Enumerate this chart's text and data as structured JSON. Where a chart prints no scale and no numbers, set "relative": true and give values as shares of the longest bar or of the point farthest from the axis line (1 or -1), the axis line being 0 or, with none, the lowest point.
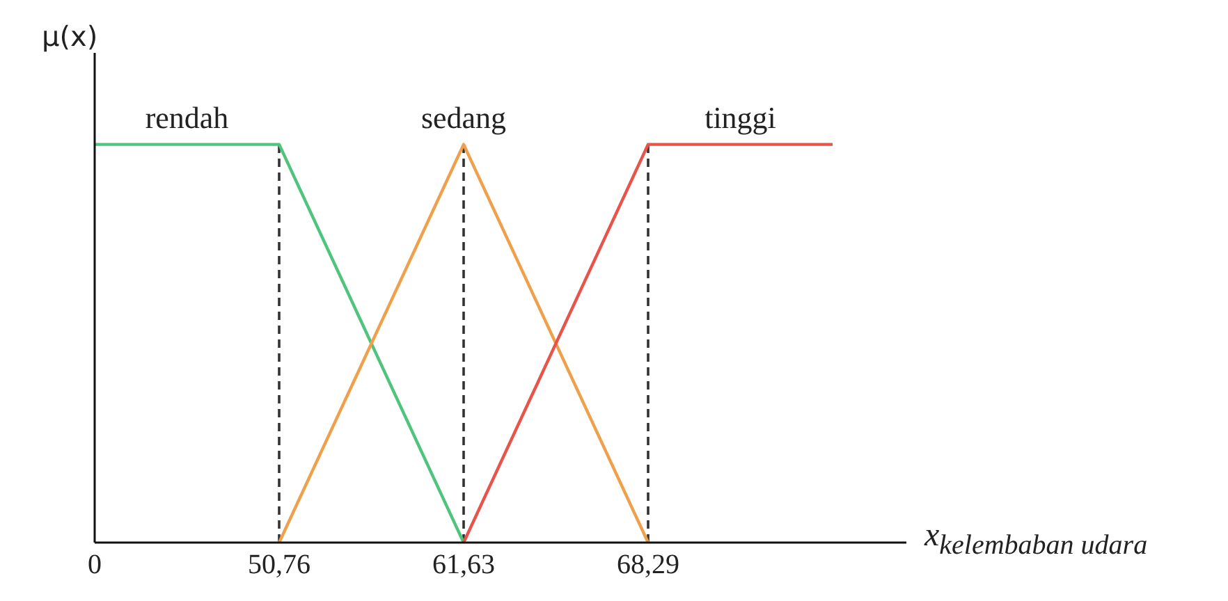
{
  "chart_data": {
    "type": "line",
    "relative": true,
    "xlabel": "x$_{kelembaban udara}$",
    "ylabel": "μ(x)",
    "categories": [
      "0",
      "50,76",
      "61,63",
      "68,29",
      null
    ],
    "series": [
      {
        "name": "rendah",
        "color": "#4fc47c",
        "values": [
          1,
          1,
          0,
          null,
          null
        ]
      },
      {
        "name": "sedang",
        "color": "#f0a04b",
        "values": [
          null,
          0,
          1,
          0,
          null
        ]
      },
      {
        "name": "tinggi",
        "color": "#e8534a",
        "values": [
          null,
          null,
          0,
          1,
          1
        ]
      }
    ],
    "ref_lines": [
      {
        "axis": "x",
        "value": "50,76",
        "line_style": "dashed",
        "color": "#333333"
      },
      {
        "axis": "x",
        "value": "61,63",
        "line_style": "dashed",
        "color": "#333333"
      },
      {
        "axis": "x",
        "value": "68,29",
        "line_style": "dashed",
        "color": "#333333"
      }
    ],
    "marker": "none"
  }
}
